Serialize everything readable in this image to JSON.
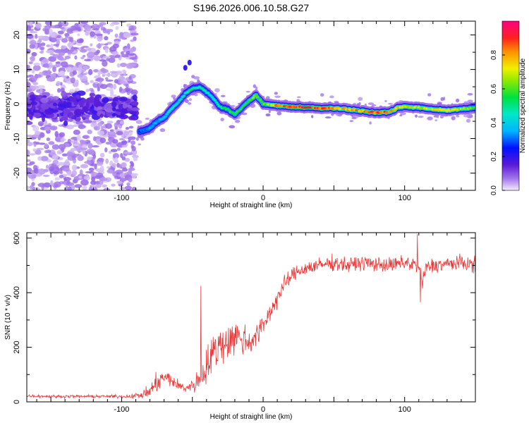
{
  "title": "S196.2026.006.10.58.G27",
  "chart_data": [
    {
      "type": "heatmap",
      "xlabel": "Height of straight line (km)",
      "ylabel": "Frequency (Hz)",
      "xlim": [
        -167,
        150
      ],
      "ylim": [
        -25,
        24
      ],
      "xticks": [
        -100,
        0,
        100
      ],
      "yticks": [
        -20,
        -10,
        0,
        10,
        20
      ],
      "colorbar": {
        "label": "Normalized spectral amplitude",
        "range": [
          0,
          1
        ],
        "ticks": [
          "0.0",
          "0.2",
          "0.4",
          "0.6",
          "0.8"
        ],
        "tick_values": [
          0,
          0.2,
          0.4,
          0.6,
          0.8
        ]
      },
      "ridge": {
        "x": [
          -87,
          -80,
          -75,
          -70,
          -65,
          -60,
          -55,
          -50,
          -45,
          -40,
          -35,
          -30,
          -25,
          -20,
          -15,
          -10,
          -5,
          0,
          10,
          20,
          30,
          40,
          50,
          60,
          70,
          80,
          90,
          95,
          100,
          110,
          120,
          130,
          140,
          150
        ],
        "y": [
          -8,
          -7,
          -5,
          -4,
          -1.5,
          0.5,
          3,
          4.5,
          5,
          3.5,
          1.5,
          -1,
          -1.5,
          -3,
          -1,
          1,
          2.5,
          0,
          -0.5,
          -0.8,
          -1,
          -1.2,
          -1.2,
          -1.5,
          -2,
          -2.5,
          -2.3,
          -1,
          -0.8,
          -1,
          -1.5,
          -1.8,
          -1.5,
          -1
        ],
        "amp": [
          0.3,
          0.35,
          0.35,
          0.4,
          0.45,
          0.45,
          0.5,
          0.55,
          0.5,
          0.45,
          0.45,
          0.5,
          0.55,
          0.6,
          0.55,
          0.6,
          0.65,
          0.6,
          0.85,
          0.9,
          0.95,
          0.9,
          0.85,
          0.8,
          0.85,
          0.9,
          0.85,
          0.8,
          0.75,
          0.7,
          0.75,
          0.8,
          0.7,
          0.6
        ]
      },
      "noise_cluster": {
        "x_range": [
          -167,
          -90
        ],
        "y_center": -1,
        "y_spread": 5
      },
      "scatter_region": {
        "x_range": [
          -167,
          -90
        ],
        "y_range": [
          -25,
          24
        ]
      }
    },
    {
      "type": "line",
      "xlabel": "Height of straight line (km)",
      "ylabel": "SNR (10 * v/v)",
      "xlim": [
        -167,
        150
      ],
      "ylim": [
        0,
        620
      ],
      "xticks": [
        -100,
        0,
        100
      ],
      "yticks": [
        0,
        200,
        400,
        600
      ],
      "series": [
        {
          "name": "SNR",
          "color": "#e83a3a",
          "x": [
            -167,
            -150,
            -130,
            -110,
            -95,
            -85,
            -80,
            -75,
            -70,
            -65,
            -60,
            -55,
            -50,
            -45,
            -40,
            -35,
            -30,
            -25,
            -20,
            -15,
            -10,
            -5,
            0,
            5,
            10,
            15,
            20,
            25,
            30,
            40,
            50,
            60,
            70,
            80,
            90,
            100,
            105,
            110,
            112,
            115,
            120,
            130,
            140,
            150
          ],
          "y": [
            22,
            20,
            20,
            20,
            20,
            25,
            40,
            70,
            90,
            80,
            60,
            50,
            60,
            80,
            130,
            180,
            210,
            220,
            240,
            230,
            220,
            240,
            280,
            330,
            380,
            430,
            460,
            480,
            490,
            500,
            510,
            500,
            510,
            505,
            500,
            510,
            505,
            500,
            430,
            490,
            500,
            505,
            510,
            500
          ],
          "noise": [
            8,
            8,
            8,
            8,
            10,
            20,
            40,
            50,
            45,
            40,
            30,
            25,
            35,
            70,
            100,
            110,
            110,
            100,
            100,
            90,
            80,
            70,
            60,
            55,
            50,
            45,
            40,
            40,
            40,
            40,
            40,
            40,
            40,
            40,
            40,
            40,
            45,
            60,
            60,
            45,
            40,
            40,
            40,
            40
          ],
          "peaks": [
            {
              "x": -44,
              "y": 425
            },
            {
              "x": 109,
              "y": 615
            },
            {
              "x": 111,
              "y": 365
            }
          ]
        }
      ]
    }
  ]
}
